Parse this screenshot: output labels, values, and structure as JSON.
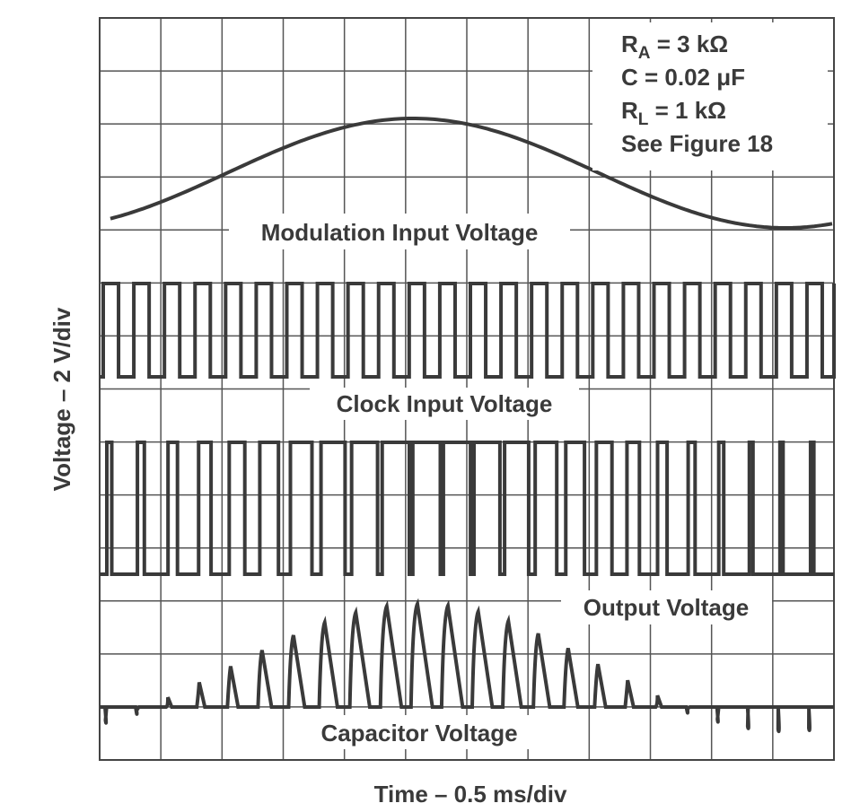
{
  "title_annotations": [
    [
      "R",
      "A",
      " = 3 kΩ"
    ],
    [
      "C = 0.02 μF"
    ],
    [
      "R",
      "L",
      " = 1 kΩ"
    ],
    [
      "See Figure 18"
    ]
  ],
  "traces": [
    "Modulation Input Voltage",
    "Clock Input Voltage",
    "Output Voltage",
    "Capacitor Voltage"
  ],
  "x_axis_label": "Time – 0.5 ms/div",
  "y_axis_label": "Voltage – 2 V/div"
}
